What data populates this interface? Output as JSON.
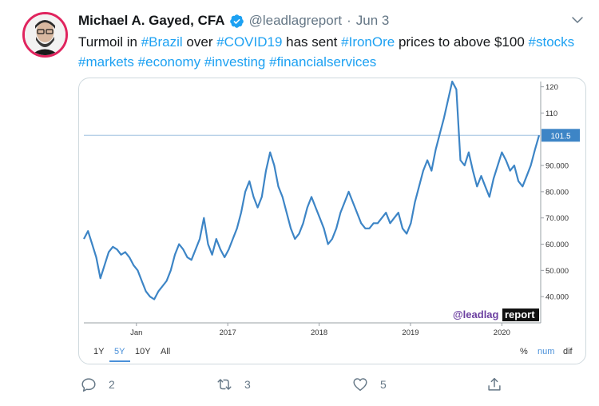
{
  "tweet": {
    "author_name": "Michael A. Gayed, CFA",
    "handle": "@leadlagreport",
    "separator": "·",
    "date": "Jun 3",
    "text_parts": [
      {
        "text": "Turmoil in ",
        "hashtag": false
      },
      {
        "text": "#Brazil",
        "hashtag": true
      },
      {
        "text": " over ",
        "hashtag": false
      },
      {
        "text": "#COVID19",
        "hashtag": true
      },
      {
        "text": " has sent ",
        "hashtag": false
      },
      {
        "text": "#IronOre",
        "hashtag": true
      },
      {
        "text": " prices to above $100 ",
        "hashtag": false
      },
      {
        "text": "#stocks",
        "hashtag": true
      },
      {
        "text": " ",
        "hashtag": false
      },
      {
        "text": "#markets",
        "hashtag": true
      },
      {
        "text": " ",
        "hashtag": false
      },
      {
        "text": "#economy",
        "hashtag": true
      },
      {
        "text": " ",
        "hashtag": false
      },
      {
        "text": "#investing",
        "hashtag": true
      },
      {
        "text": " ",
        "hashtag": false
      },
      {
        "text": "#financialservices",
        "hashtag": true
      }
    ],
    "actions": {
      "reply_count": "2",
      "retweet_count": "3",
      "like_count": "5",
      "share_count": ""
    }
  },
  "colors": {
    "accent": "#1da1f2",
    "line": "#3d85c6",
    "avatar_ring": "#e0245e"
  },
  "icons": [
    "verified-badge-icon",
    "chevron-down-icon",
    "reply-icon",
    "retweet-icon",
    "like-icon",
    "share-icon"
  ],
  "chart": {
    "watermark_prefix": "@leadlag",
    "watermark_suffix": "report",
    "last_value_label": "101.5",
    "range_buttons": [
      {
        "label": "1Y",
        "active": false
      },
      {
        "label": "5Y",
        "active": true
      },
      {
        "label": "10Y",
        "active": false
      },
      {
        "label": "All",
        "active": false
      }
    ],
    "scale_buttons": [
      {
        "label": "%",
        "active": false
      },
      {
        "label": "num",
        "active": true
      },
      {
        "label": "dif",
        "active": false
      }
    ]
  },
  "chart_data": {
    "type": "line",
    "x_tick_labels": [
      "Jan",
      "2017",
      "2018",
      "2019",
      "2020"
    ],
    "y_tick_labels": [
      "40.000",
      "50.000",
      "60.000",
      "70.000",
      "80.000",
      "90.000",
      "110",
      "120"
    ],
    "ylim": [
      30,
      122
    ],
    "reference_line": 101.5,
    "series": [
      {
        "values": [
          62,
          65,
          60,
          55,
          47,
          52,
          57,
          59,
          58,
          56,
          57,
          55,
          52,
          50,
          46,
          42,
          40,
          39,
          42,
          44,
          46,
          50,
          56,
          60,
          58,
          55,
          54,
          58,
          62,
          70,
          60,
          56,
          62,
          58,
          55,
          58,
          62,
          66,
          72,
          80,
          84,
          78,
          74,
          78,
          88,
          95,
          90,
          82,
          78,
          72,
          66,
          62,
          64,
          68,
          74,
          78,
          74,
          70,
          66,
          60,
          62,
          66,
          72,
          76,
          80,
          76,
          72,
          68,
          66,
          66,
          68,
          68,
          70,
          72,
          68,
          70,
          72,
          66,
          64,
          68,
          76,
          82,
          88,
          92,
          88,
          96,
          102,
          108,
          115,
          122,
          119,
          92,
          90,
          95,
          88,
          82,
          86,
          82,
          78,
          85,
          90,
          95,
          92,
          88,
          90,
          84,
          82,
          86,
          90,
          96,
          101.5
        ]
      }
    ]
  }
}
